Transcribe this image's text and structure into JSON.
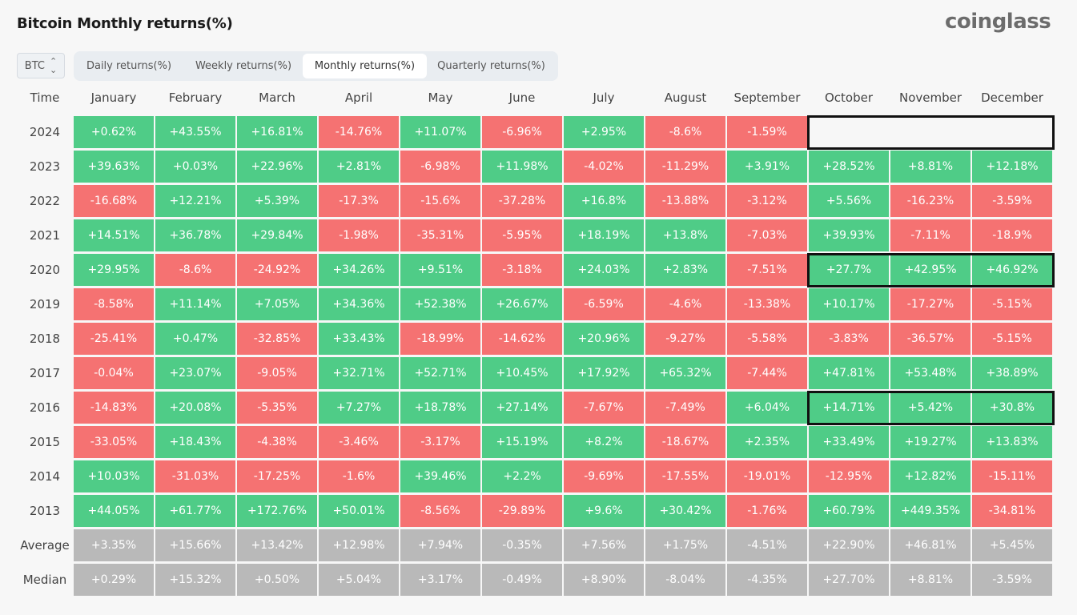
{
  "title": "Bitcoin Monthly returns(%)",
  "logo": "coinglass",
  "asset_select": {
    "value": "BTC",
    "icon": "up-down-chevron-icon"
  },
  "tabs": [
    {
      "label": "Daily returns(%)",
      "active": false
    },
    {
      "label": "Weekly returns(%)",
      "active": false
    },
    {
      "label": "Monthly returns(%)",
      "active": true
    },
    {
      "label": "Quarterly returns(%)",
      "active": false
    }
  ],
  "colors": {
    "positive": "#4fcc87",
    "negative": "#f57272",
    "summary": "#b9b9b9"
  },
  "chart_data": {
    "type": "heatmap",
    "title": "Bitcoin Monthly returns(%)",
    "row_header": "Time",
    "columns": [
      "January",
      "February",
      "March",
      "April",
      "May",
      "June",
      "July",
      "August",
      "September",
      "October",
      "November",
      "December"
    ],
    "rows": [
      {
        "label": "2024",
        "values": [
          "+0.62%",
          "+43.55%",
          "+16.81%",
          "-14.76%",
          "+11.07%",
          "-6.96%",
          "+2.95%",
          "-8.6%",
          "-1.59%",
          "",
          "",
          ""
        ]
      },
      {
        "label": "2023",
        "values": [
          "+39.63%",
          "+0.03%",
          "+22.96%",
          "+2.81%",
          "-6.98%",
          "+11.98%",
          "-4.02%",
          "-11.29%",
          "+3.91%",
          "+28.52%",
          "+8.81%",
          "+12.18%"
        ]
      },
      {
        "label": "2022",
        "values": [
          "-16.68%",
          "+12.21%",
          "+5.39%",
          "-17.3%",
          "-15.6%",
          "-37.28%",
          "+16.8%",
          "-13.88%",
          "-3.12%",
          "+5.56%",
          "-16.23%",
          "-3.59%"
        ]
      },
      {
        "label": "2021",
        "values": [
          "+14.51%",
          "+36.78%",
          "+29.84%",
          "-1.98%",
          "-35.31%",
          "-5.95%",
          "+18.19%",
          "+13.8%",
          "-7.03%",
          "+39.93%",
          "-7.11%",
          "-18.9%"
        ]
      },
      {
        "label": "2020",
        "values": [
          "+29.95%",
          "-8.6%",
          "-24.92%",
          "+34.26%",
          "+9.51%",
          "-3.18%",
          "+24.03%",
          "+2.83%",
          "-7.51%",
          "+27.7%",
          "+42.95%",
          "+46.92%"
        ]
      },
      {
        "label": "2019",
        "values": [
          "-8.58%",
          "+11.14%",
          "+7.05%",
          "+34.36%",
          "+52.38%",
          "+26.67%",
          "-6.59%",
          "-4.6%",
          "-13.38%",
          "+10.17%",
          "-17.27%",
          "-5.15%"
        ]
      },
      {
        "label": "2018",
        "values": [
          "-25.41%",
          "+0.47%",
          "-32.85%",
          "+33.43%",
          "-18.99%",
          "-14.62%",
          "+20.96%",
          "-9.27%",
          "-5.58%",
          "-3.83%",
          "-36.57%",
          "-5.15%"
        ]
      },
      {
        "label": "2017",
        "values": [
          "-0.04%",
          "+23.07%",
          "-9.05%",
          "+32.71%",
          "+52.71%",
          "+10.45%",
          "+17.92%",
          "+65.32%",
          "-7.44%",
          "+47.81%",
          "+53.48%",
          "+38.89%"
        ]
      },
      {
        "label": "2016",
        "values": [
          "-14.83%",
          "+20.08%",
          "-5.35%",
          "+7.27%",
          "+18.78%",
          "+27.14%",
          "-7.67%",
          "-7.49%",
          "+6.04%",
          "+14.71%",
          "+5.42%",
          "+30.8%"
        ]
      },
      {
        "label": "2015",
        "values": [
          "-33.05%",
          "+18.43%",
          "-4.38%",
          "-3.46%",
          "-3.17%",
          "+15.19%",
          "+8.2%",
          "-18.67%",
          "+2.35%",
          "+33.49%",
          "+19.27%",
          "+13.83%"
        ]
      },
      {
        "label": "2014",
        "values": [
          "+10.03%",
          "-31.03%",
          "-17.25%",
          "-1.6%",
          "+39.46%",
          "+2.2%",
          "-9.69%",
          "-17.55%",
          "-19.01%",
          "-12.95%",
          "+12.82%",
          "-15.11%"
        ]
      },
      {
        "label": "2013",
        "values": [
          "+44.05%",
          "+61.77%",
          "+172.76%",
          "+50.01%",
          "-8.56%",
          "-29.89%",
          "+9.6%",
          "+30.42%",
          "-1.76%",
          "+60.79%",
          "+449.35%",
          "-34.81%"
        ]
      }
    ],
    "summary_rows": [
      {
        "label": "Average",
        "values": [
          "+3.35%",
          "+15.66%",
          "+13.42%",
          "+12.98%",
          "+7.94%",
          "-0.35%",
          "+7.56%",
          "+1.75%",
          "-4.51%",
          "+22.90%",
          "+46.81%",
          "+5.45%"
        ]
      },
      {
        "label": "Median",
        "values": [
          "+0.29%",
          "+15.32%",
          "+0.50%",
          "+5.04%",
          "+3.17%",
          "-0.49%",
          "+8.90%",
          "-8.04%",
          "-4.35%",
          "+27.70%",
          "+8.81%",
          "-3.59%"
        ]
      }
    ],
    "highlights": [
      {
        "row": "2024",
        "months": [
          "October",
          "November",
          "December"
        ]
      },
      {
        "row": "2020",
        "months": [
          "October",
          "November",
          "December"
        ]
      },
      {
        "row": "2016",
        "months": [
          "October",
          "November",
          "December"
        ]
      }
    ]
  }
}
